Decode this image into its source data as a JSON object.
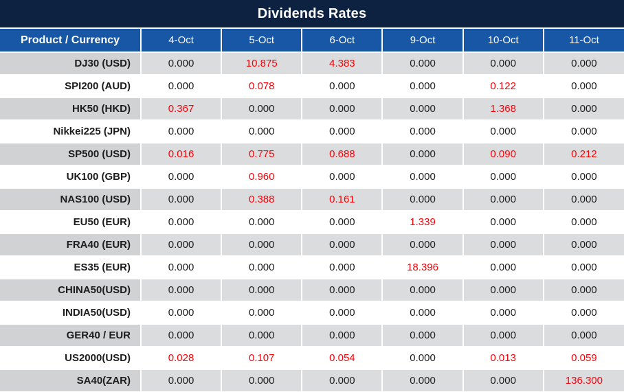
{
  "chart_data": {
    "type": "table",
    "title": "Dividends Rates",
    "columns": [
      "Product / Currency",
      "4-Oct",
      "5-Oct",
      "6-Oct",
      "9-Oct",
      "10-Oct",
      "11-Oct"
    ],
    "rows": [
      {
        "product": "DJ30 (USD)",
        "values": [
          "0.000",
          "10.875",
          "4.383",
          "0.000",
          "0.000",
          "0.000"
        ]
      },
      {
        "product": "SPI200 (AUD)",
        "values": [
          "0.000",
          "0.078",
          "0.000",
          "0.000",
          "0.122",
          "0.000"
        ]
      },
      {
        "product": "HK50 (HKD)",
        "values": [
          "0.367",
          "0.000",
          "0.000",
          "0.000",
          "1.368",
          "0.000"
        ]
      },
      {
        "product": "Nikkei225 (JPN)",
        "values": [
          "0.000",
          "0.000",
          "0.000",
          "0.000",
          "0.000",
          "0.000"
        ]
      },
      {
        "product": "SP500 (USD)",
        "values": [
          "0.016",
          "0.775",
          "0.688",
          "0.000",
          "0.090",
          "0.212"
        ]
      },
      {
        "product": "UK100 (GBP)",
        "values": [
          "0.000",
          "0.960",
          "0.000",
          "0.000",
          "0.000",
          "0.000"
        ]
      },
      {
        "product": "NAS100 (USD)",
        "values": [
          "0.000",
          "0.388",
          "0.161",
          "0.000",
          "0.000",
          "0.000"
        ]
      },
      {
        "product": "EU50 (EUR)",
        "values": [
          "0.000",
          "0.000",
          "0.000",
          "1.339",
          "0.000",
          "0.000"
        ]
      },
      {
        "product": "FRA40 (EUR)",
        "values": [
          "0.000",
          "0.000",
          "0.000",
          "0.000",
          "0.000",
          "0.000"
        ]
      },
      {
        "product": "ES35 (EUR)",
        "values": [
          "0.000",
          "0.000",
          "0.000",
          "18.396",
          "0.000",
          "0.000"
        ]
      },
      {
        "product": "CHINA50(USD)",
        "values": [
          "0.000",
          "0.000",
          "0.000",
          "0.000",
          "0.000",
          "0.000"
        ]
      },
      {
        "product": "INDIA50(USD)",
        "values": [
          "0.000",
          "0.000",
          "0.000",
          "0.000",
          "0.000",
          "0.000"
        ]
      },
      {
        "product": "GER40 / EUR",
        "values": [
          "0.000",
          "0.000",
          "0.000",
          "0.000",
          "0.000",
          "0.000"
        ]
      },
      {
        "product": "US2000(USD)",
        "values": [
          "0.028",
          "0.107",
          "0.054",
          "0.000",
          "0.013",
          "0.059"
        ]
      },
      {
        "product": "SA40(ZAR)",
        "values": [
          "0.000",
          "0.000",
          "0.000",
          "0.000",
          "0.000",
          "136.300"
        ]
      }
    ],
    "zero_value": "0.000",
    "highlight_rule": "non-zero values rendered in red",
    "layout_hints": {
      "row_striping": "gray-white alternating starting gray",
      "label_column_align": "right",
      "value_align": "center"
    }
  },
  "colors": {
    "title_bar_bg": "#0d2240",
    "header_bg": "#1757a6",
    "row_label_gray": "#d0d2d4",
    "row_data_gray": "#dbdcde",
    "row_white": "#ffffff",
    "text_dark": "#1c1c1c",
    "highlight_red": "#fb0007",
    "separator": "#ffffff"
  }
}
